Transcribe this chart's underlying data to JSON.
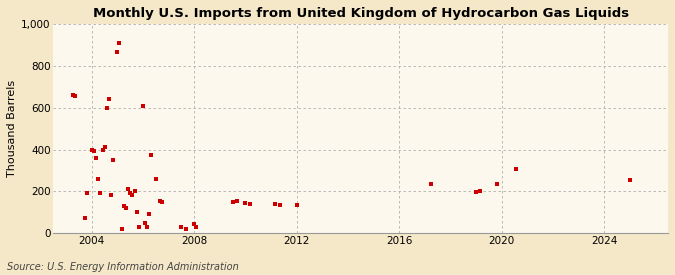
{
  "title": "Monthly U.S. Imports from United Kingdom of Hydrocarbon Gas Liquids",
  "ylabel": "Thousand Barrels",
  "source": "Source: U.S. Energy Information Administration",
  "background_color": "#f5e8c8",
  "plot_background_color": "#fdf8ee",
  "grid_color": "#b0b0b0",
  "point_color": "#cc0000",
  "xlim": [
    2002.5,
    2026.5
  ],
  "ylim": [
    0,
    1000
  ],
  "yticks": [
    0,
    200,
    400,
    600,
    800,
    1000
  ],
  "xticks": [
    2004,
    2008,
    2012,
    2016,
    2020,
    2024
  ],
  "data_points": [
    [
      2003.25,
      660
    ],
    [
      2003.33,
      655
    ],
    [
      2003.75,
      75
    ],
    [
      2003.83,
      190
    ],
    [
      2004.0,
      400
    ],
    [
      2004.08,
      395
    ],
    [
      2004.17,
      360
    ],
    [
      2004.25,
      260
    ],
    [
      2004.33,
      190
    ],
    [
      2004.42,
      400
    ],
    [
      2004.5,
      410
    ],
    [
      2004.58,
      600
    ],
    [
      2004.67,
      640
    ],
    [
      2004.75,
      185
    ],
    [
      2004.83,
      350
    ],
    [
      2005.0,
      865
    ],
    [
      2005.08,
      910
    ],
    [
      2005.17,
      20
    ],
    [
      2005.25,
      130
    ],
    [
      2005.33,
      120
    ],
    [
      2005.42,
      210
    ],
    [
      2005.5,
      190
    ],
    [
      2005.58,
      185
    ],
    [
      2005.67,
      200
    ],
    [
      2005.75,
      100
    ],
    [
      2005.83,
      30
    ],
    [
      2006.0,
      610
    ],
    [
      2006.08,
      50
    ],
    [
      2006.17,
      30
    ],
    [
      2006.25,
      90
    ],
    [
      2006.33,
      375
    ],
    [
      2006.5,
      260
    ],
    [
      2006.67,
      155
    ],
    [
      2006.75,
      150
    ],
    [
      2007.5,
      30
    ],
    [
      2007.67,
      20
    ],
    [
      2008.0,
      45
    ],
    [
      2008.08,
      30
    ],
    [
      2009.5,
      150
    ],
    [
      2009.67,
      155
    ],
    [
      2010.0,
      145
    ],
    [
      2010.17,
      140
    ],
    [
      2011.17,
      140
    ],
    [
      2011.33,
      135
    ],
    [
      2012.0,
      135
    ],
    [
      2017.25,
      235
    ],
    [
      2019.0,
      195
    ],
    [
      2019.17,
      200
    ],
    [
      2019.83,
      235
    ],
    [
      2020.58,
      305
    ],
    [
      2025.0,
      255
    ]
  ]
}
